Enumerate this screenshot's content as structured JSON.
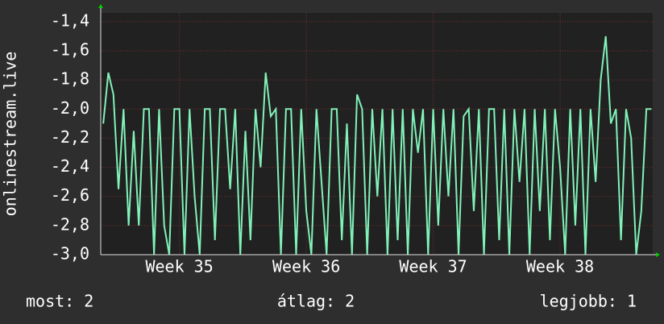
{
  "chart_data": {
    "type": "line",
    "y_label": "onlinestream.live",
    "x": [
      34.4,
      34.44,
      34.48,
      34.52,
      34.56,
      34.6,
      34.64,
      34.68,
      34.72,
      34.76,
      34.8,
      34.84,
      34.88,
      34.92,
      34.96,
      35.0,
      35.04,
      35.08,
      35.12,
      35.16,
      35.2,
      35.24,
      35.28,
      35.32,
      35.36,
      35.4,
      35.44,
      35.48,
      35.52,
      35.56,
      35.6,
      35.64,
      35.68,
      35.72,
      35.76,
      35.8,
      35.84,
      35.88,
      35.92,
      35.96,
      36.0,
      36.04,
      36.08,
      36.12,
      36.16,
      36.2,
      36.24,
      36.28,
      36.32,
      36.36,
      36.4,
      36.44,
      36.48,
      36.52,
      36.56,
      36.6,
      36.64,
      36.68,
      36.72,
      36.76,
      36.8,
      36.84,
      36.88,
      36.92,
      36.96,
      37.0,
      37.04,
      37.08,
      37.12,
      37.16,
      37.2,
      37.24,
      37.28,
      37.32,
      37.36,
      37.4,
      37.44,
      37.48,
      37.52,
      37.56,
      37.6,
      37.64,
      37.68,
      37.72,
      37.76,
      37.8,
      37.84,
      37.88,
      37.92,
      37.96,
      38.0,
      38.04,
      38.08,
      38.12,
      38.16,
      38.2,
      38.24,
      38.28,
      38.32,
      38.36,
      38.4,
      38.44,
      38.48,
      38.52,
      38.56,
      38.6,
      38.64,
      38.68,
      38.72
    ],
    "series": [
      {
        "name": "onlinestream.live",
        "color": "#80f2b8",
        "values": [
          -2.1,
          -1.75,
          -1.9,
          -2.55,
          -2.0,
          -2.8,
          -2.15,
          -2.8,
          -2.0,
          -2.0,
          -3.0,
          -2.0,
          -2.8,
          -3.0,
          -2.0,
          -2.0,
          -3.0,
          -2.0,
          -2.6,
          -3.0,
          -2.0,
          -2.0,
          -2.9,
          -2.0,
          -2.0,
          -2.55,
          -2.0,
          -3.0,
          -2.15,
          -2.9,
          -2.0,
          -2.4,
          -1.75,
          -2.05,
          -2.0,
          -3.0,
          -2.0,
          -2.0,
          -3.0,
          -2.0,
          -2.7,
          -3.0,
          -2.0,
          -2.5,
          -3.0,
          -2.0,
          -2.0,
          -2.9,
          -2.1,
          -3.0,
          -1.9,
          -2.0,
          -3.0,
          -2.0,
          -2.6,
          -2.0,
          -3.0,
          -2.0,
          -2.9,
          -2.0,
          -3.0,
          -2.0,
          -2.3,
          -2.0,
          -3.0,
          -2.0,
          -2.8,
          -2.0,
          -2.6,
          -2.0,
          -3.0,
          -2.05,
          -2.0,
          -2.7,
          -2.0,
          -3.0,
          -2.0,
          -2.0,
          -2.9,
          -2.0,
          -3.0,
          -2.0,
          -2.5,
          -2.0,
          -3.0,
          -2.0,
          -2.7,
          -2.0,
          -2.9,
          -2.0,
          -2.4,
          -3.0,
          -2.0,
          -2.8,
          -2.0,
          -3.0,
          -2.0,
          -2.5,
          -1.8,
          -1.5,
          -2.1,
          -2.0,
          -2.9,
          -2.0,
          -2.2,
          -3.0,
          -2.7,
          -2.0,
          -2.0
        ]
      }
    ],
    "xlim": [
      34.38,
      38.73
    ],
    "xticks": [
      {
        "value": 35,
        "label": "Week 35"
      },
      {
        "value": 36,
        "label": "Week 36"
      },
      {
        "value": 37,
        "label": "Week 37"
      },
      {
        "value": 38,
        "label": "Week 38"
      }
    ],
    "ylim": [
      -3.0,
      -1.34
    ],
    "yticks": [
      {
        "value": -3.0,
        "label": "-3,0"
      },
      {
        "value": -2.8,
        "label": "-2,8"
      },
      {
        "value": -2.6,
        "label": "-2,6"
      },
      {
        "value": -2.4,
        "label": "-2,4"
      },
      {
        "value": -2.2,
        "label": "-2,2"
      },
      {
        "value": -2.0,
        "label": "-2,0"
      },
      {
        "value": -1.8,
        "label": "-1,8"
      },
      {
        "value": -1.6,
        "label": "-1,6"
      },
      {
        "value": -1.4,
        "label": "-1,4"
      }
    ],
    "grid": true,
    "stats": [
      "most: 2",
      "átlag: 2",
      "legjobb: 1"
    ]
  }
}
